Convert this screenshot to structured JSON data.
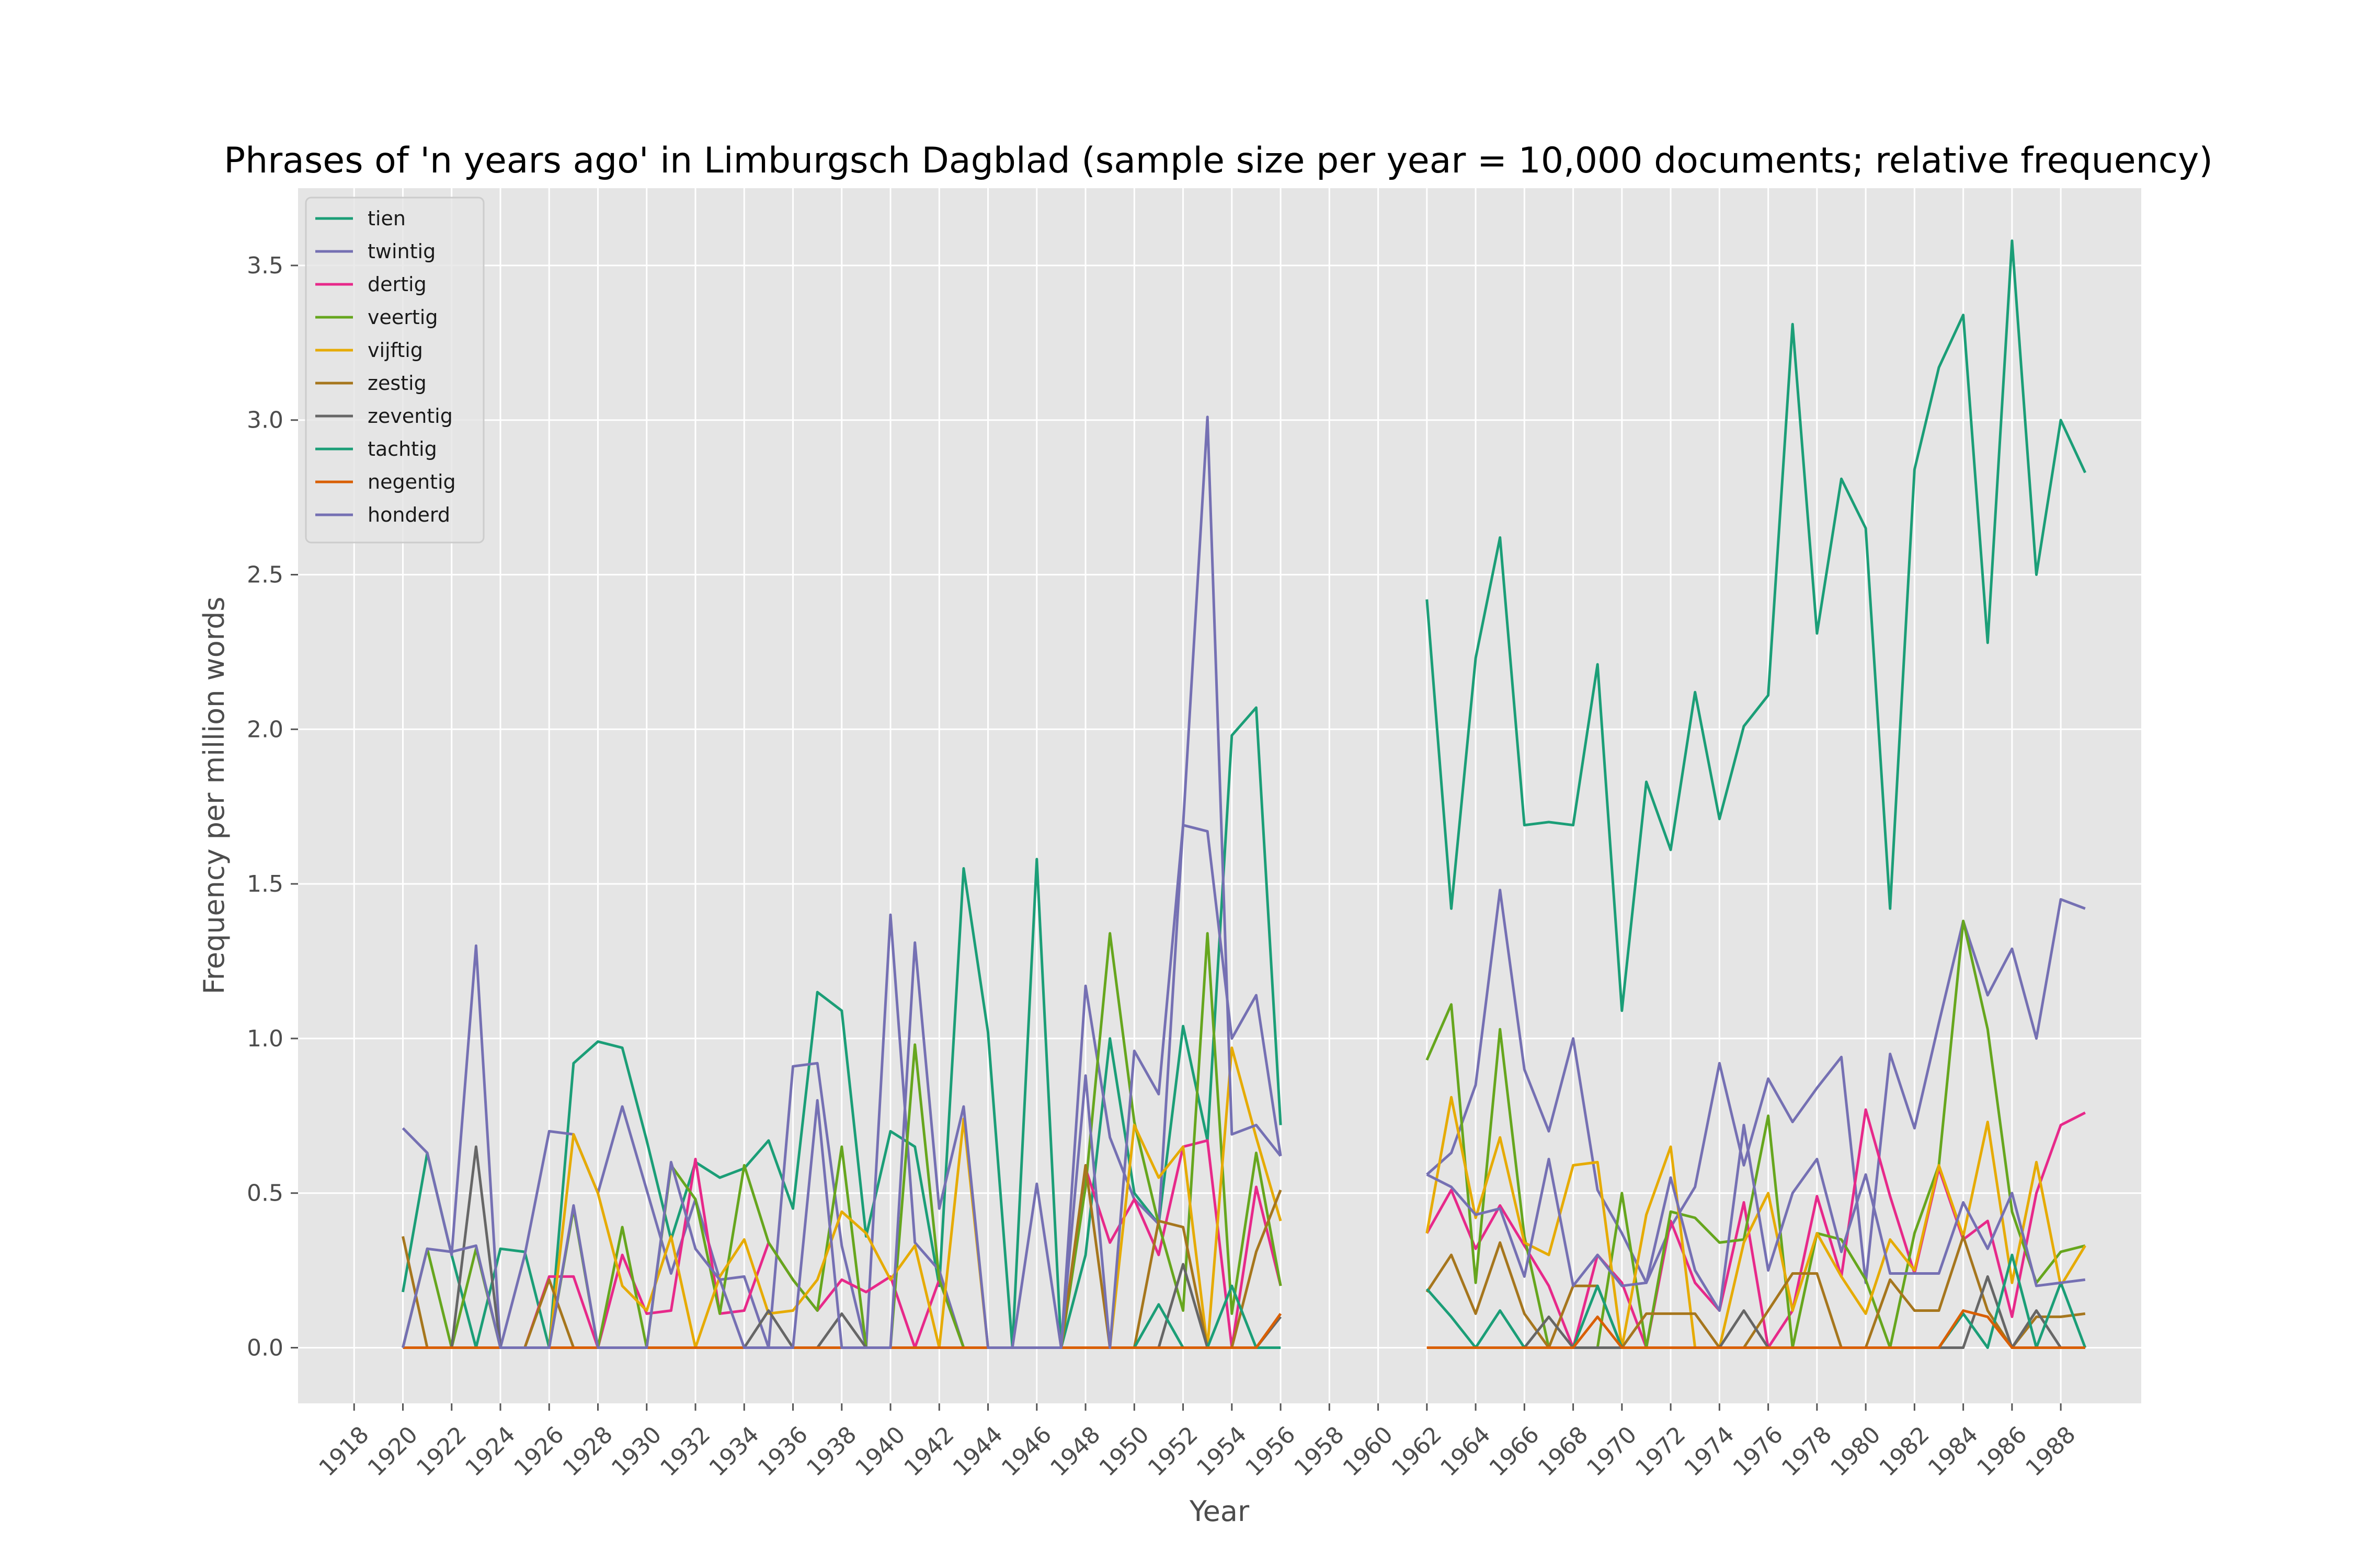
{
  "chart_data": {
    "type": "line",
    "title": "Phrases of 'n years ago' in Limburgsch Dagblad (sample size per year = 10,000 documents; relative frequency)",
    "xlabel": "Year",
    "ylabel": "Frequency per million words",
    "xlim": [
      1915.7,
      1991.3
    ],
    "ylim": [
      -0.18,
      3.75
    ],
    "grid": true,
    "background": "#e5e5e5",
    "legend_position": "top-left",
    "x_ticks": [
      1918,
      1920,
      1922,
      1924,
      1926,
      1928,
      1930,
      1932,
      1934,
      1936,
      1938,
      1940,
      1942,
      1944,
      1946,
      1948,
      1950,
      1952,
      1954,
      1956,
      1958,
      1960,
      1962,
      1964,
      1966,
      1968,
      1970,
      1972,
      1974,
      1976,
      1978,
      1980,
      1982,
      1984,
      1986,
      1988
    ],
    "y_ticks": [
      0.0,
      0.5,
      1.0,
      1.5,
      2.0,
      2.5,
      3.0,
      3.5
    ],
    "y_tick_labels": [
      "0.0",
      "0.5",
      "1.0",
      "1.5",
      "2.0",
      "2.5",
      "3.0",
      "3.5"
    ],
    "x": [
      1920,
      1921,
      1922,
      1923,
      1924,
      1925,
      1926,
      1927,
      1928,
      1929,
      1930,
      1931,
      1932,
      1933,
      1934,
      1935,
      1936,
      1937,
      1938,
      1939,
      1940,
      1941,
      1942,
      1943,
      1944,
      1945,
      1946,
      1947,
      1948,
      1949,
      1950,
      1951,
      1952,
      1953,
      1954,
      1955,
      1956,
      null,
      1962,
      1963,
      1964,
      1965,
      1966,
      1967,
      1968,
      1969,
      1970,
      1971,
      1972,
      1973,
      1974,
      1975,
      1976,
      1977,
      1978,
      1979,
      1980,
      1981,
      1982,
      1983,
      1984,
      1985,
      1986,
      1987,
      1988,
      1989
    ],
    "series": [
      {
        "name": "tien",
        "color": "#1b9e77",
        "values": [
          0.18,
          0.63,
          0.3,
          0.0,
          0.32,
          0.31,
          0.0,
          0.92,
          0.99,
          0.97,
          0.67,
          0.35,
          0.6,
          0.55,
          0.58,
          0.67,
          0.45,
          1.15,
          1.09,
          0.36,
          0.7,
          0.65,
          0.2,
          1.55,
          1.02,
          0.0,
          1.58,
          0.0,
          0.3,
          1.0,
          0.5,
          0.4,
          1.04,
          0.67,
          1.98,
          2.07,
          0.72,
          null,
          2.42,
          1.42,
          2.23,
          2.62,
          1.69,
          1.7,
          1.69,
          2.21,
          1.09,
          1.83,
          1.61,
          2.12,
          1.71,
          2.01,
          2.11,
          3.31,
          2.31,
          2.81,
          2.65,
          1.42,
          2.84,
          3.17,
          3.34,
          2.28,
          3.58,
          2.5,
          3.0,
          2.83
        ]
      },
      {
        "name": "twintig",
        "color": "#7570b3",
        "values": [
          0.71,
          0.63,
          0.3,
          1.3,
          0.0,
          0.3,
          0.7,
          0.69,
          0.5,
          0.78,
          0.51,
          0.24,
          0.48,
          0.22,
          0.23,
          0.0,
          0.91,
          0.92,
          0.33,
          0.0,
          1.4,
          0.34,
          0.25,
          0.0,
          0.0,
          0.0,
          0.53,
          0.0,
          1.17,
          0.68,
          0.48,
          0.4,
          1.69,
          1.67,
          1.0,
          1.14,
          0.62,
          null,
          0.56,
          0.63,
          0.85,
          1.48,
          0.9,
          0.7,
          1.0,
          0.51,
          0.37,
          0.21,
          0.39,
          0.52,
          0.92,
          0.59,
          0.87,
          0.73,
          0.84,
          0.94,
          0.21,
          0.95,
          0.71,
          1.05,
          1.38,
          1.14,
          1.29,
          1.0,
          1.45,
          1.42
        ]
      },
      {
        "name": "dertig",
        "color": "#e7298a",
        "values": [
          0.0,
          0.0,
          0.0,
          0.0,
          0.0,
          0.0,
          0.23,
          0.23,
          0.0,
          0.3,
          0.11,
          0.12,
          0.61,
          0.11,
          0.12,
          0.34,
          0.22,
          0.12,
          0.22,
          0.18,
          0.23,
          0.0,
          0.22,
          0.0,
          0.0,
          0.0,
          0.0,
          0.0,
          0.58,
          0.34,
          0.48,
          0.3,
          0.65,
          0.67,
          0.0,
          0.52,
          0.2,
          null,
          0.37,
          0.51,
          0.32,
          0.46,
          0.33,
          0.2,
          0.0,
          0.3,
          0.21,
          0.0,
          0.41,
          0.21,
          0.12,
          0.47,
          0.0,
          0.12,
          0.49,
          0.23,
          0.77,
          0.49,
          0.24,
          0.58,
          0.35,
          0.41,
          0.1,
          0.5,
          0.72,
          0.76
        ]
      },
      {
        "name": "veertig",
        "color": "#66a61e",
        "values": [
          0.0,
          0.32,
          0.0,
          0.32,
          0.0,
          0.0,
          0.0,
          0.45,
          0.0,
          0.39,
          0.0,
          0.59,
          0.48,
          0.11,
          0.59,
          0.34,
          0.22,
          0.12,
          0.65,
          0.0,
          0.0,
          0.98,
          0.22,
          0.0,
          0.0,
          0.0,
          0.0,
          0.0,
          0.52,
          1.34,
          0.73,
          0.4,
          0.12,
          1.34,
          0.11,
          0.63,
          0.2,
          null,
          0.93,
          1.11,
          0.21,
          1.03,
          0.36,
          0.0,
          0.0,
          0.0,
          0.5,
          0.0,
          0.44,
          0.42,
          0.34,
          0.35,
          0.75,
          0.0,
          0.37,
          0.35,
          0.22,
          0.0,
          0.37,
          0.59,
          1.38,
          1.03,
          0.44,
          0.21,
          0.31,
          0.33
        ]
      },
      {
        "name": "vijftig",
        "color": "#e6ab02",
        "values": [
          0.0,
          0.0,
          0.0,
          0.0,
          0.0,
          0.0,
          0.0,
          0.69,
          0.5,
          0.2,
          0.12,
          0.36,
          0.0,
          0.23,
          0.35,
          0.11,
          0.12,
          0.22,
          0.44,
          0.37,
          0.22,
          0.33,
          0.0,
          0.74,
          0.0,
          0.0,
          0.0,
          0.0,
          0.0,
          0.0,
          0.72,
          0.55,
          0.65,
          0.0,
          0.97,
          0.68,
          0.41,
          null,
          0.37,
          0.81,
          0.42,
          0.68,
          0.34,
          0.3,
          0.59,
          0.6,
          0.0,
          0.43,
          0.65,
          0.0,
          0.0,
          0.34,
          0.5,
          0.12,
          0.37,
          0.23,
          0.11,
          0.35,
          0.25,
          0.59,
          0.36,
          0.73,
          0.21,
          0.6,
          0.2,
          0.33
        ]
      },
      {
        "name": "zestig",
        "color": "#a6761d",
        "values": [
          0.36,
          0.0,
          0.0,
          0.0,
          0.0,
          0.0,
          0.22,
          0.0,
          0.0,
          0.0,
          0.0,
          0.0,
          0.0,
          0.0,
          0.0,
          0.0,
          0.0,
          0.0,
          0.0,
          0.0,
          0.0,
          0.0,
          0.0,
          0.0,
          0.0,
          0.0,
          0.0,
          0.0,
          0.59,
          0.0,
          0.0,
          0.41,
          0.39,
          0.0,
          0.0,
          0.31,
          0.51,
          null,
          0.18,
          0.3,
          0.11,
          0.34,
          0.11,
          0.0,
          0.2,
          0.2,
          0.0,
          0.11,
          0.11,
          0.11,
          0.0,
          0.0,
          0.12,
          0.24,
          0.24,
          0.0,
          0.0,
          0.22,
          0.12,
          0.12,
          0.36,
          0.12,
          0.0,
          0.1,
          0.1,
          0.11
        ]
      },
      {
        "name": "zeventig",
        "color": "#666666",
        "values": [
          0.0,
          0.0,
          0.0,
          0.65,
          0.0,
          0.0,
          0.0,
          0.0,
          0.0,
          0.0,
          0.0,
          0.0,
          0.0,
          0.0,
          0.0,
          0.12,
          0.0,
          0.0,
          0.11,
          0.0,
          0.0,
          0.0,
          0.0,
          0.0,
          0.0,
          0.0,
          0.0,
          0.0,
          0.0,
          0.0,
          0.0,
          0.0,
          0.27,
          0.0,
          0.0,
          0.0,
          0.1,
          null,
          0.0,
          0.0,
          0.0,
          0.0,
          0.0,
          0.1,
          0.0,
          0.0,
          0.0,
          0.0,
          0.0,
          0.0,
          0.0,
          0.12,
          0.0,
          0.0,
          0.0,
          0.0,
          0.0,
          0.0,
          0.0,
          0.0,
          0.0,
          0.23,
          0.0,
          0.12,
          0.0,
          0.0
        ]
      },
      {
        "name": "tachtig",
        "color": "#1b9e77",
        "values": [
          0.0,
          0.0,
          0.0,
          0.0,
          0.0,
          0.0,
          0.0,
          0.0,
          0.0,
          0.0,
          0.0,
          0.0,
          0.0,
          0.0,
          0.0,
          0.0,
          0.0,
          0.0,
          0.0,
          0.0,
          0.0,
          0.0,
          0.0,
          0.0,
          0.0,
          0.0,
          0.0,
          0.0,
          0.0,
          0.0,
          0.0,
          0.14,
          0.0,
          0.0,
          0.2,
          0.0,
          0.0,
          null,
          0.19,
          0.1,
          0.0,
          0.12,
          0.0,
          0.0,
          0.0,
          0.2,
          0.0,
          0.0,
          0.0,
          0.0,
          0.0,
          0.0,
          0.0,
          0.0,
          0.0,
          0.0,
          0.0,
          0.0,
          0.0,
          0.0,
          0.11,
          0.0,
          0.3,
          0.0,
          0.21,
          0.0
        ]
      },
      {
        "name": "negentig",
        "color": "#d95f02",
        "values": [
          0.0,
          0.0,
          0.0,
          0.0,
          0.0,
          0.0,
          0.0,
          0.0,
          0.0,
          0.0,
          0.0,
          0.0,
          0.0,
          0.0,
          0.0,
          0.0,
          0.0,
          0.0,
          0.0,
          0.0,
          0.0,
          0.0,
          0.0,
          0.0,
          0.0,
          0.0,
          0.0,
          0.0,
          0.0,
          0.0,
          0.0,
          0.0,
          0.0,
          0.0,
          0.0,
          0.0,
          0.11,
          null,
          0.0,
          0.0,
          0.0,
          0.0,
          0.0,
          0.0,
          0.0,
          0.1,
          0.0,
          0.0,
          0.0,
          0.0,
          0.0,
          0.0,
          0.0,
          0.0,
          0.0,
          0.0,
          0.0,
          0.0,
          0.0,
          0.0,
          0.12,
          0.1,
          0.0,
          0.0,
          0.0,
          0.0
        ]
      },
      {
        "name": "honderd",
        "color": "#7570b3",
        "values": [
          0.0,
          0.32,
          0.31,
          0.33,
          0.0,
          0.0,
          0.0,
          0.46,
          0.0,
          0.0,
          0.0,
          0.6,
          0.32,
          0.22,
          0.0,
          0.0,
          0.0,
          0.8,
          0.0,
          0.0,
          0.0,
          1.31,
          0.45,
          0.78,
          0.0,
          0.0,
          0.0,
          0.0,
          0.88,
          0.0,
          0.96,
          0.82,
          1.69,
          3.01,
          0.69,
          0.72,
          0.62,
          null,
          0.56,
          0.52,
          0.43,
          0.45,
          0.23,
          0.61,
          0.2,
          0.3,
          0.2,
          0.21,
          0.55,
          0.25,
          0.12,
          0.72,
          0.25,
          0.5,
          0.61,
          0.31,
          0.56,
          0.24,
          0.24,
          0.24,
          0.47,
          0.32,
          0.5,
          0.2,
          0.21,
          0.22
        ]
      }
    ]
  }
}
